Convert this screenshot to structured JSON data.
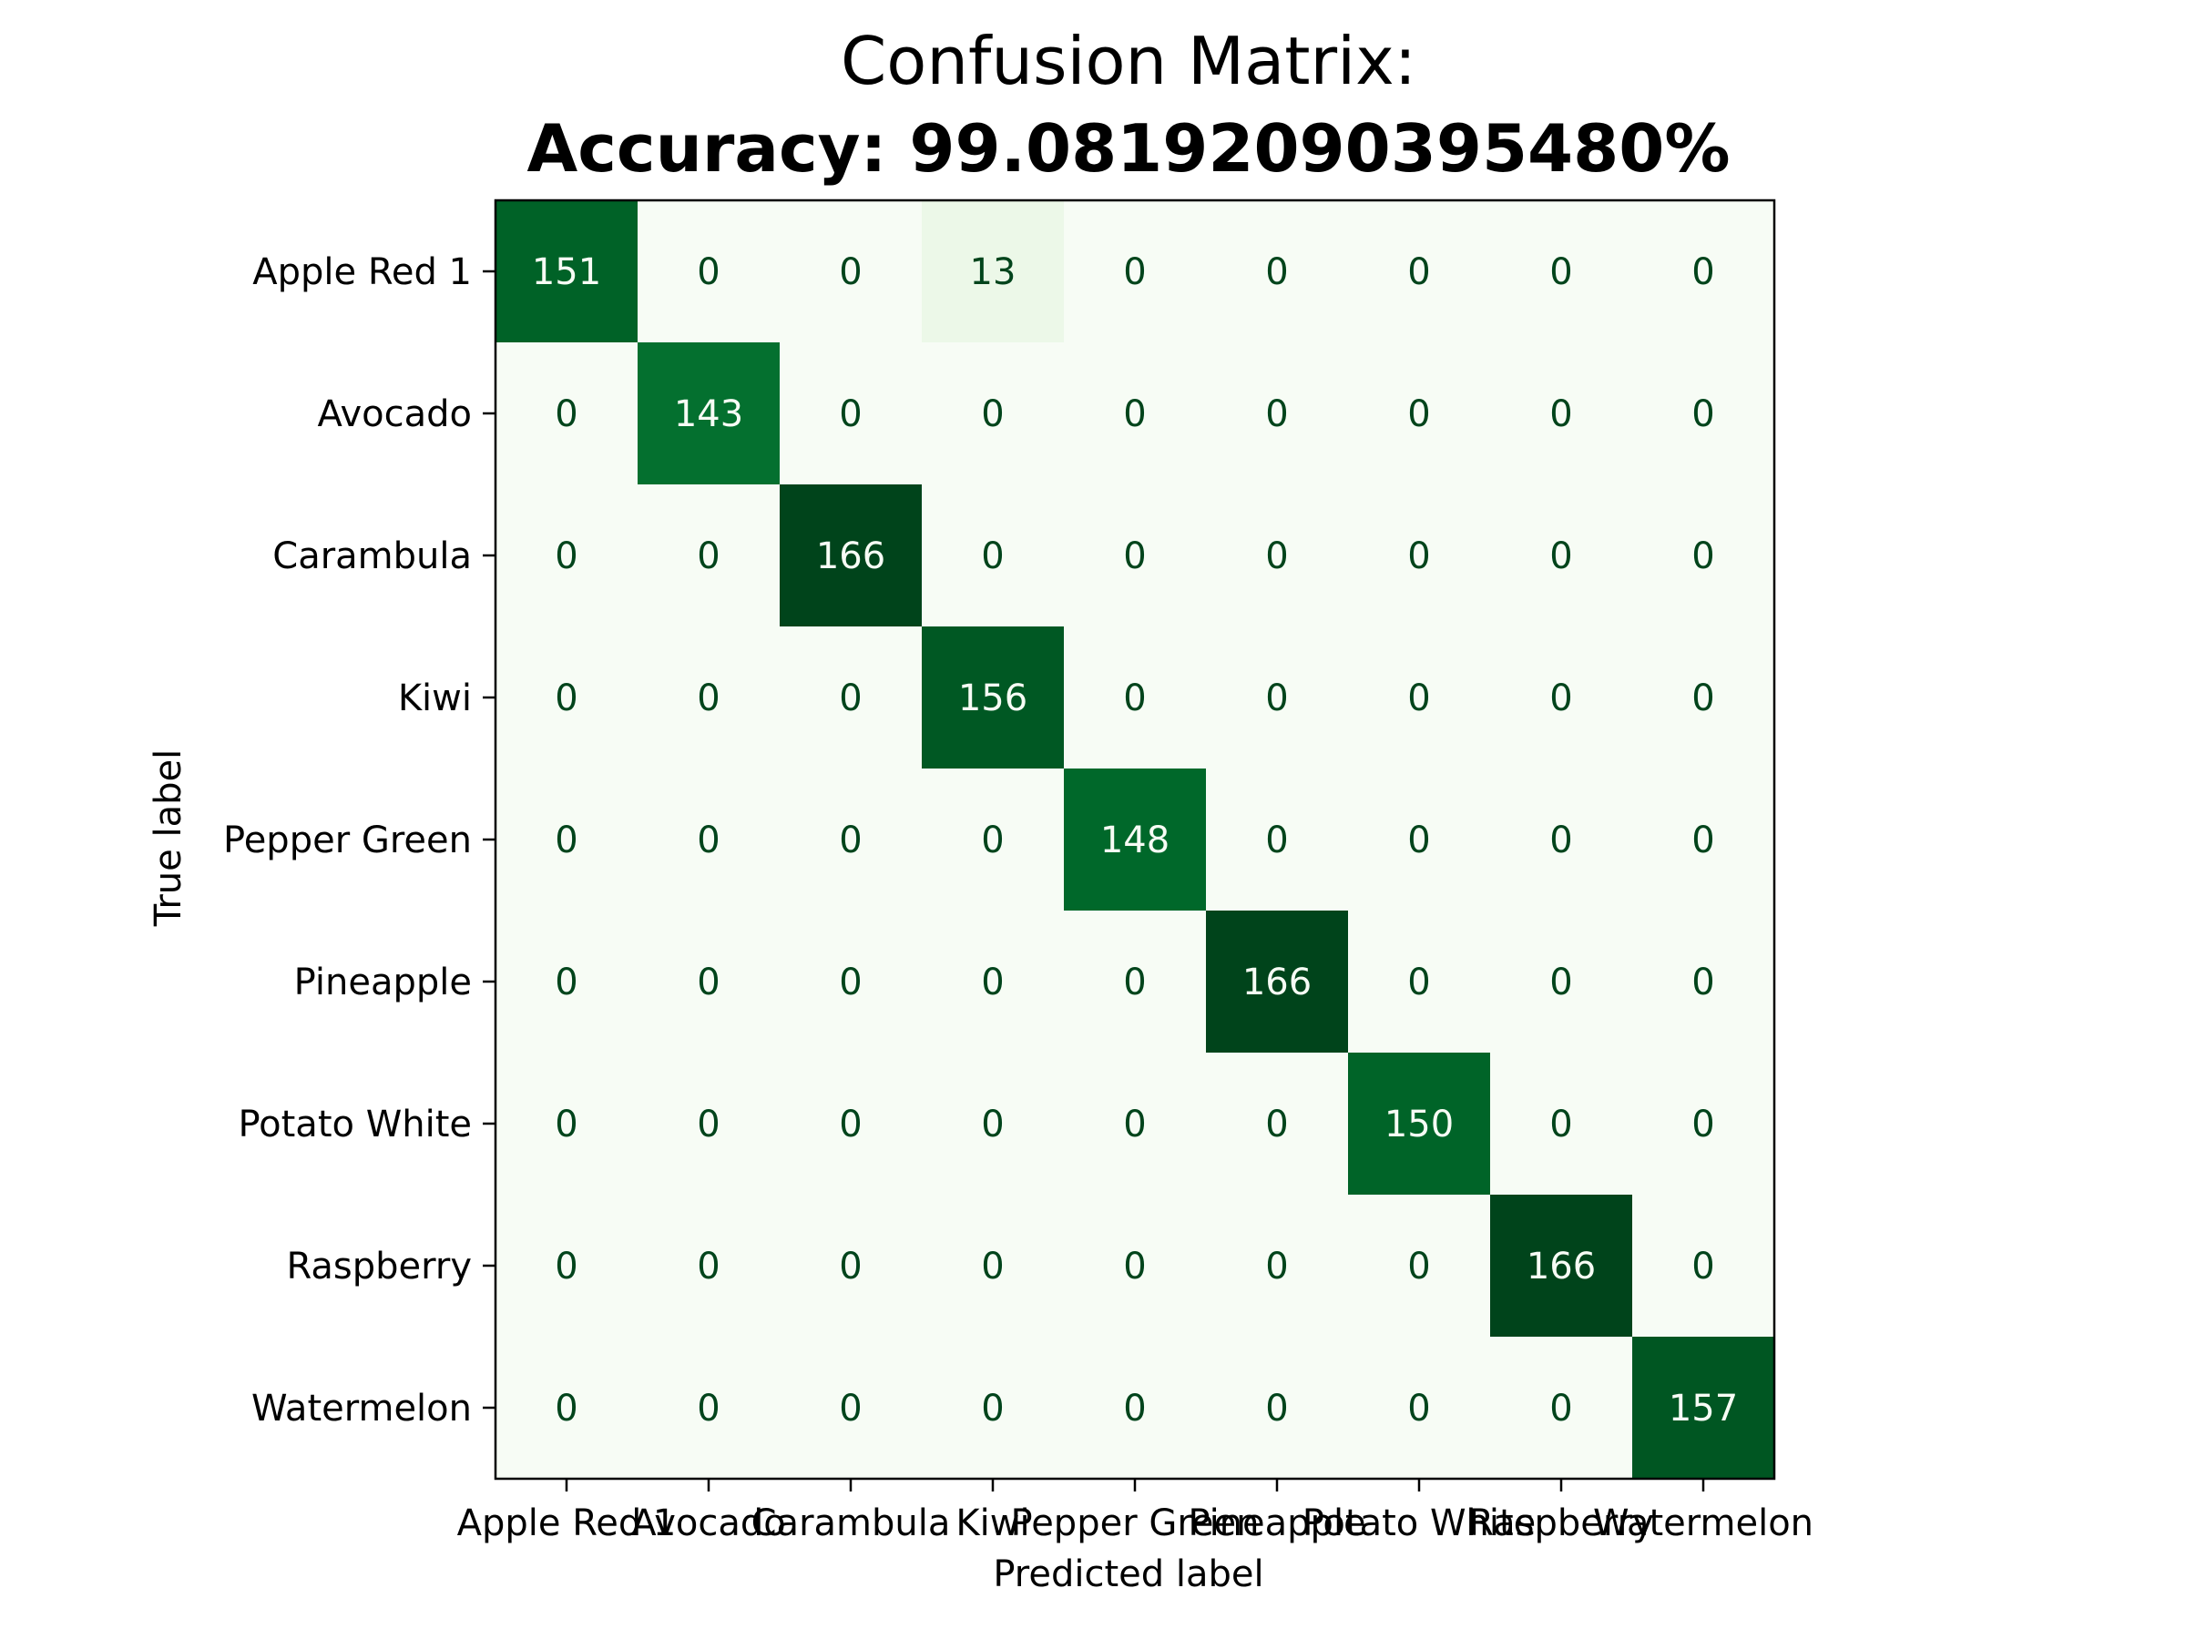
{
  "chart_data": {
    "type": "heatmap",
    "title": "Confusion Matrix:",
    "subtitle": "Accuracy: 99.08192090395480%",
    "xlabel": "Predicted label",
    "ylabel": "True label",
    "categories": [
      "Apple Red 1",
      "Avocado",
      "Carambula",
      "Kiwi",
      "Pepper Green",
      "Pineapple",
      "Potato White",
      "Raspberry",
      "Watermelon"
    ],
    "colormap": "Greens",
    "value_range": [
      0,
      166
    ],
    "matrix": [
      [
        151,
        0,
        0,
        13,
        0,
        0,
        0,
        0,
        0
      ],
      [
        0,
        143,
        0,
        0,
        0,
        0,
        0,
        0,
        0
      ],
      [
        0,
        0,
        166,
        0,
        0,
        0,
        0,
        0,
        0
      ],
      [
        0,
        0,
        0,
        156,
        0,
        0,
        0,
        0,
        0
      ],
      [
        0,
        0,
        0,
        0,
        148,
        0,
        0,
        0,
        0
      ],
      [
        0,
        0,
        0,
        0,
        0,
        166,
        0,
        0,
        0
      ],
      [
        0,
        0,
        0,
        0,
        0,
        0,
        150,
        0,
        0
      ],
      [
        0,
        0,
        0,
        0,
        0,
        0,
        0,
        166,
        0
      ],
      [
        0,
        0,
        0,
        0,
        0,
        0,
        0,
        0,
        157
      ]
    ],
    "colors": {
      "low": "#f7fcf5",
      "high": "#00441b",
      "text_light": "#f7fcf5",
      "text_dark": "#00441b"
    }
  }
}
